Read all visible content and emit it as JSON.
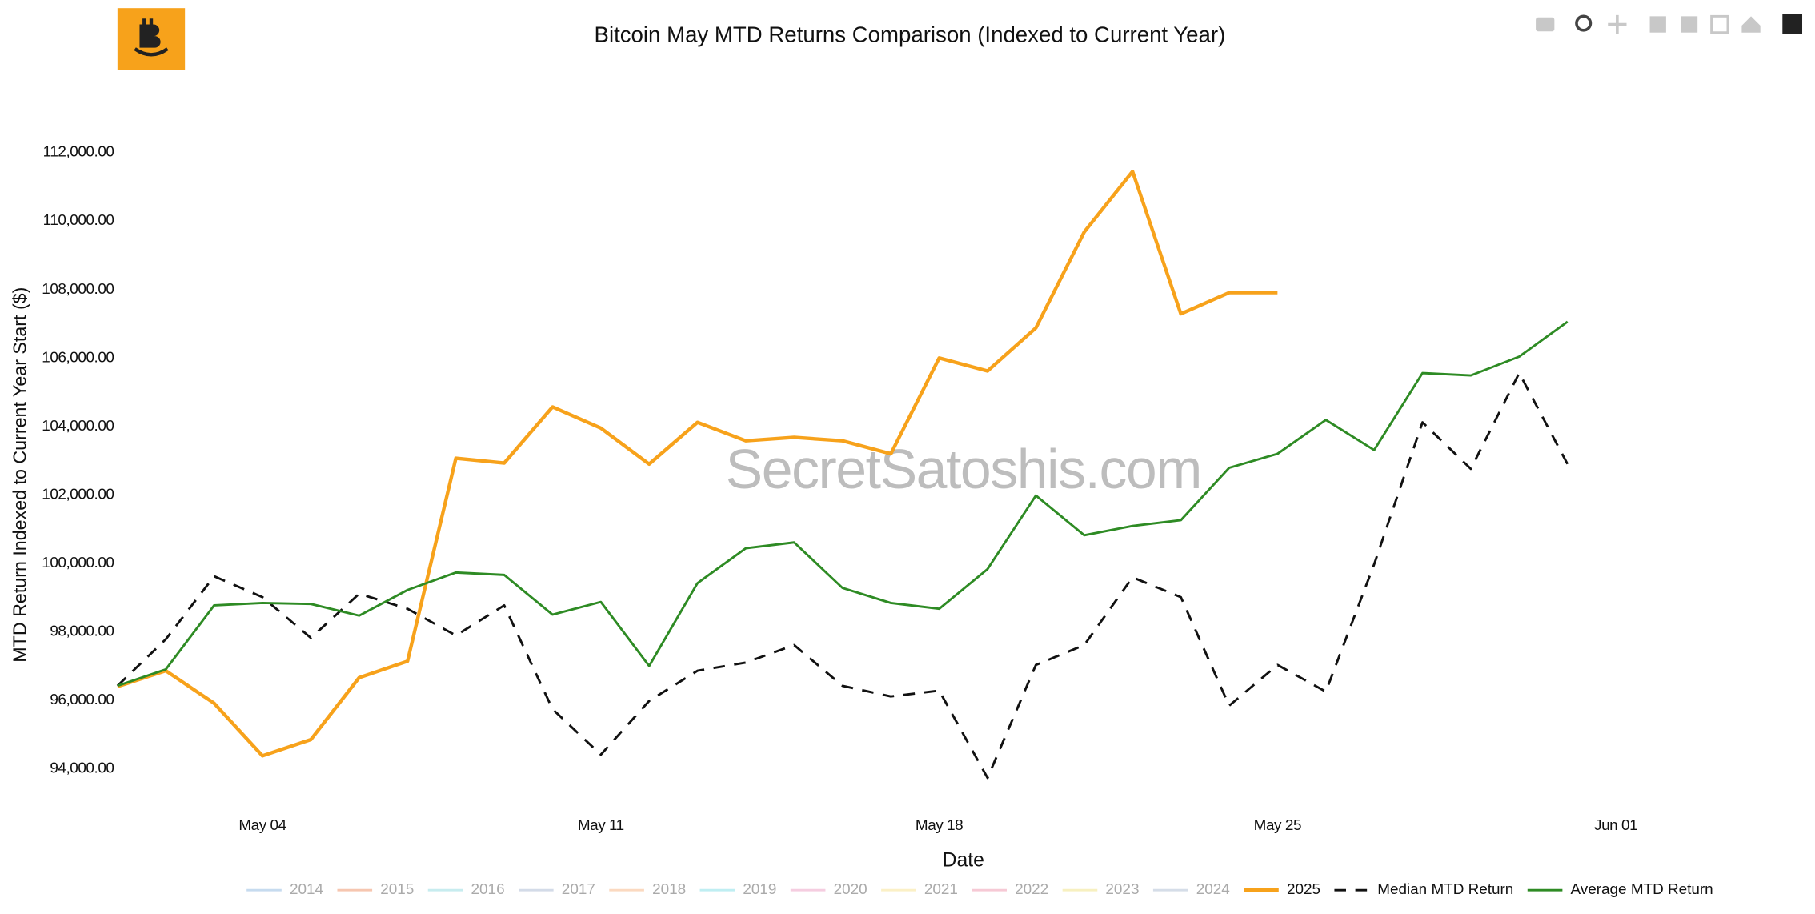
{
  "chart_data": {
    "type": "line",
    "title": "Bitcoin May MTD Returns Comparison (Indexed to Current Year)",
    "x_label": "Date",
    "y_label": "MTD Return Indexed to Current Year Start ($)",
    "watermark": "SecretSatoshis.com",
    "x": [
      "May 01",
      "May 02",
      "May 03",
      "May 04",
      "May 05",
      "May 06",
      "May 07",
      "May 08",
      "May 09",
      "May 10",
      "May 11",
      "May 12",
      "May 13",
      "May 14",
      "May 15",
      "May 16",
      "May 17",
      "May 18",
      "May 19",
      "May 20",
      "May 21",
      "May 22",
      "May 23",
      "May 24",
      "May 25",
      "May 26",
      "May 27",
      "May 28",
      "May 29",
      "May 30",
      "May 31"
    ],
    "xlim": [
      "May 01",
      "Jun 05"
    ],
    "xticks": [
      "May 04",
      "May 11",
      "May 18",
      "May 25",
      "Jun 01"
    ],
    "ylim": [
      93000,
      113400
    ],
    "yticks": [
      {
        "value": 94000,
        "label": "94,000.00"
      },
      {
        "value": 96000,
        "label": "96,000.00"
      },
      {
        "value": 98000,
        "label": "98,000.00"
      },
      {
        "value": 100000,
        "label": "100,000.00"
      },
      {
        "value": 102000,
        "label": "102,000.00"
      },
      {
        "value": 104000,
        "label": "104,000.00"
      },
      {
        "value": 106000,
        "label": "106,000.00"
      },
      {
        "value": 108000,
        "label": "108,000.00"
      },
      {
        "value": 110000,
        "label": "110,000.00"
      },
      {
        "value": 112000,
        "label": "112,000.00"
      }
    ],
    "grid": false,
    "legend_position": "bottom",
    "legend_only": [
      {
        "name": "2014",
        "color": "#c6dbef"
      },
      {
        "name": "2015",
        "color": "#f6c6b0"
      },
      {
        "name": "2016",
        "color": "#c7ecef"
      },
      {
        "name": "2017",
        "color": "#d3dbe8"
      },
      {
        "name": "2018",
        "color": "#fbd9c0"
      },
      {
        "name": "2019",
        "color": "#bfeef2"
      },
      {
        "name": "2020",
        "color": "#f5cde0"
      },
      {
        "name": "2021",
        "color": "#fbf0c6"
      },
      {
        "name": "2022",
        "color": "#f6c9d5"
      },
      {
        "name": "2023",
        "color": "#f7f0c0"
      },
      {
        "name": "2024",
        "color": "#d5dde8"
      }
    ],
    "series": [
      {
        "name": "2025",
        "color": "#f7a21b",
        "width": 3,
        "dash": "solid",
        "values": [
          96400,
          96860,
          95910,
          94375,
          94850,
          96660,
          97140,
          103070,
          102930,
          104570,
          103950,
          102900,
          104120,
          103580,
          103680,
          103580,
          103200,
          106000,
          105620,
          106880,
          109680,
          111450,
          107290,
          107910,
          107910,
          null,
          null,
          null,
          null,
          null,
          null
        ]
      },
      {
        "name": "Median MTD Return",
        "color": "#111111",
        "width": 2,
        "dash": "dashed",
        "values": [
          96420,
          97780,
          99620,
          99010,
          97820,
          99110,
          98670,
          97890,
          98770,
          95740,
          94410,
          95980,
          96860,
          97100,
          97610,
          96420,
          96110,
          96280,
          93730,
          97030,
          97610,
          99590,
          99010,
          95840,
          97030,
          96250,
          99970,
          104120,
          102760,
          105560,
          102900
        ]
      },
      {
        "name": "Average MTD Return",
        "color": "#2e8b24",
        "width": 2,
        "dash": "solid",
        "values": [
          96420,
          96900,
          98770,
          98840,
          98810,
          98470,
          99220,
          99730,
          99660,
          98500,
          98870,
          97000,
          99420,
          100440,
          100610,
          99280,
          98840,
          98670,
          99830,
          101980,
          100820,
          101090,
          101260,
          102790,
          103200,
          104190,
          103310,
          105560,
          105490,
          106040,
          107060
        ]
      }
    ]
  }
}
